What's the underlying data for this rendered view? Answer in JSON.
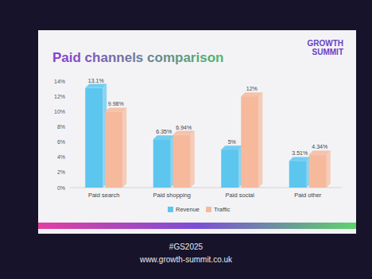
{
  "chart_data": {
    "type": "bar",
    "title": "Paid channels comparison",
    "categories": [
      "Paid search",
      "Paid shopping",
      "Paid social",
      "Paid other"
    ],
    "series": [
      {
        "name": "Revenue",
        "color": "#5cc6ee",
        "values": [
          13.1,
          6.35,
          5,
          3.51
        ],
        "value_labels": [
          "13.1%",
          "6.35%",
          "5%",
          "3.51%"
        ]
      },
      {
        "name": "Traffic",
        "color": "#f6b99c",
        "values": [
          9.98,
          6.94,
          12,
          4.34
        ],
        "value_labels": [
          "9.98%",
          "6.94%",
          "12%",
          "4.34%"
        ]
      }
    ],
    "ylim": [
      0,
      14
    ],
    "yticks": [
      {
        "value": 0,
        "label": "0%"
      },
      {
        "value": 2,
        "label": "2%"
      },
      {
        "value": 4,
        "label": "4%"
      },
      {
        "value": 6,
        "label": "6%"
      },
      {
        "value": 8,
        "label": "8%"
      },
      {
        "value": 10,
        "label": "10%"
      },
      {
        "value": 12,
        "label": "12%"
      },
      {
        "value": 14,
        "label": "14%"
      }
    ],
    "grid": false,
    "data_labels": true,
    "legend": "bottom",
    "annotations": [
      "GROWTH SUMMIT",
      "#GS2025",
      "www.growth-summit.co.uk"
    ]
  }
}
